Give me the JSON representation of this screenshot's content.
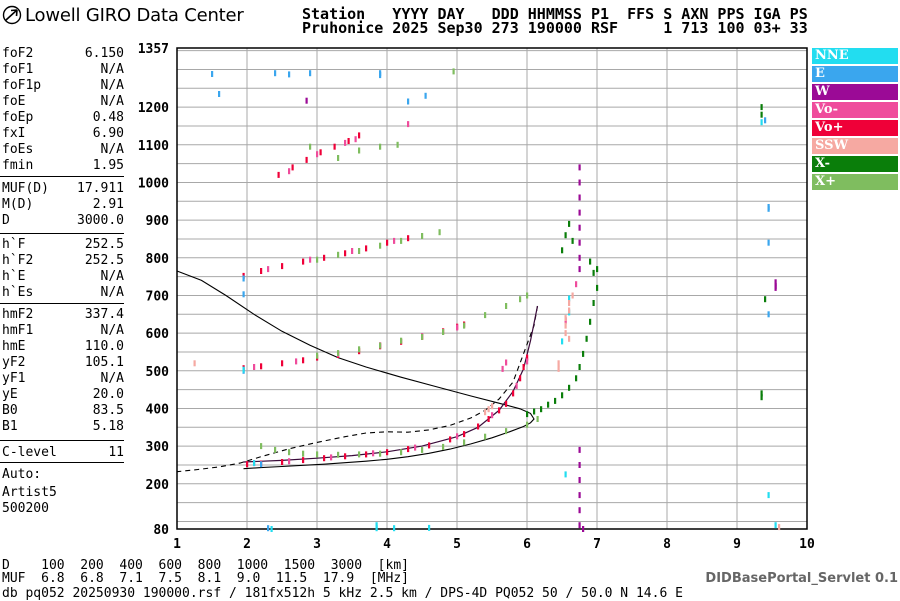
{
  "header": {
    "logo_text": "Lowell GIRO Data Center",
    "line1": "Station   YYYY DAY   DDD HHMMSS P1  FFS S AXN PPS IGA PS",
    "line2": "Pruhonice 2025 Sep30 273 190000 RSF     1 713 100 03+ 33"
  },
  "params": {
    "group1": [
      {
        "name": "foF2",
        "value": "6.150"
      },
      {
        "name": "foF1",
        "value": "N/A"
      },
      {
        "name": "foF1p",
        "value": "N/A"
      },
      {
        "name": "foE",
        "value": "N/A"
      },
      {
        "name": "foEp",
        "value": "0.48"
      },
      {
        "name": "fxI",
        "value": "6.90"
      },
      {
        "name": "foEs",
        "value": "N/A"
      },
      {
        "name": "fmin",
        "value": "1.95"
      }
    ],
    "group2": [
      {
        "name": "MUF(D)",
        "value": "17.911"
      },
      {
        "name": "M(D)",
        "value": "2.91"
      },
      {
        "name": "D",
        "value": "3000.0"
      }
    ],
    "group3": [
      {
        "name": "h`F",
        "value": "252.5"
      },
      {
        "name": "h`F2",
        "value": "252.5"
      },
      {
        "name": "h`E",
        "value": "N/A"
      },
      {
        "name": "h`Es",
        "value": "N/A"
      }
    ],
    "group4": [
      {
        "name": "hmF2",
        "value": "337.4"
      },
      {
        "name": "hmF1",
        "value": "N/A"
      },
      {
        "name": "hmE",
        "value": "110.0"
      },
      {
        "name": "yF2",
        "value": "105.1"
      },
      {
        "name": "yF1",
        "value": "N/A"
      },
      {
        "name": "yE",
        "value": "20.0"
      },
      {
        "name": "B0",
        "value": "83.5"
      },
      {
        "name": "B1",
        "value": "5.18"
      }
    ],
    "group5": [
      {
        "name": "C-level",
        "value": "11"
      }
    ]
  },
  "auto": {
    "line1": "Auto:",
    "line2": "Artist5",
    "line3": "500200"
  },
  "legend": [
    {
      "label": "NNE",
      "color": "#22ddf0"
    },
    {
      "label": "E",
      "color": "#3aa6ee"
    },
    {
      "label": "W",
      "color": "#9b0a96"
    },
    {
      "label": "Vo-",
      "color": "#ef4c9c"
    },
    {
      "label": "Vo+",
      "color": "#ef0038"
    },
    {
      "label": "SSW",
      "color": "#f6a9a2"
    },
    {
      "label": "X-",
      "color": "#0a7e0a"
    },
    {
      "label": "X+",
      "color": "#7fbd5f"
    }
  ],
  "bottom": {
    "d_row": "D    100  200  400  600  800  1000  1500  3000  [km]",
    "muf_row": "MUF  6.8  6.8  7.1  7.5  8.1  9.0  11.5  17.9  [MHz]",
    "file_row": "db pq052 20250930 190000.rsf / 181fx512h 5 kHz 2.5 km / DPS-4D PQ052 50 / 50.0 N 14.6 E",
    "portal": "DIDBasePortal_Servlet 0.1"
  },
  "chart_data": {
    "type": "scatter",
    "title": "",
    "xlabel": "",
    "ylabel": "",
    "xlim": [
      1,
      10
    ],
    "ylim": [
      80,
      1357
    ],
    "x_ticks": [
      1,
      2,
      3,
      4,
      5,
      6,
      7,
      8,
      9,
      10
    ],
    "y_ticks": [
      80,
      200,
      300,
      400,
      500,
      600,
      700,
      800,
      900,
      1000,
      1100,
      1200,
      1357
    ],
    "grid": true,
    "legend_position": "right",
    "series": [
      {
        "name": "Vo+",
        "color": "#ef0038",
        "points": [
          [
            2.0,
            252
          ],
          [
            2.2,
            254
          ],
          [
            2.5,
            258
          ],
          [
            2.8,
            263
          ],
          [
            3.1,
            268
          ],
          [
            3.4,
            273
          ],
          [
            3.7,
            278
          ],
          [
            4.0,
            284
          ],
          [
            4.3,
            292
          ],
          [
            4.6,
            302
          ],
          [
            4.9,
            318
          ],
          [
            5.1,
            332
          ],
          [
            5.3,
            352
          ],
          [
            5.45,
            372
          ],
          [
            5.6,
            395
          ],
          [
            5.7,
            412
          ],
          [
            5.8,
            440
          ],
          [
            5.9,
            480
          ],
          [
            5.95,
            510
          ],
          [
            6.0,
            535
          ],
          [
            1.95,
            507
          ],
          [
            2.2,
            512
          ],
          [
            2.5,
            520
          ],
          [
            2.8,
            528
          ],
          [
            3.0,
            535
          ],
          [
            3.3,
            542
          ],
          [
            3.6,
            552
          ],
          [
            3.9,
            565
          ],
          [
            4.2,
            577
          ],
          [
            4.5,
            590
          ],
          [
            4.8,
            605
          ],
          [
            5.0,
            617
          ],
          [
            5.1,
            623
          ],
          [
            1.95,
            752
          ],
          [
            2.2,
            765
          ],
          [
            2.5,
            778
          ],
          [
            2.8,
            790
          ],
          [
            3.1,
            800
          ],
          [
            3.4,
            812
          ],
          [
            3.7,
            825
          ],
          [
            4.0,
            840
          ],
          [
            4.3,
            852
          ],
          [
            2.45,
            1020
          ],
          [
            2.65,
            1040
          ],
          [
            2.85,
            1060
          ],
          [
            3.05,
            1080
          ],
          [
            3.25,
            1095
          ],
          [
            3.45,
            1110
          ],
          [
            3.6,
            1125
          ]
        ]
      },
      {
        "name": "Vo-",
        "color": "#ef4c9c",
        "points": [
          [
            2.1,
            255
          ],
          [
            2.6,
            260
          ],
          [
            3.2,
            270
          ],
          [
            3.8,
            281
          ],
          [
            4.4,
            296
          ],
          [
            5.0,
            326
          ],
          [
            5.5,
            382
          ],
          [
            5.85,
            460
          ],
          [
            6.0,
            525
          ],
          [
            2.1,
            510
          ],
          [
            2.7,
            525
          ],
          [
            3.3,
            545
          ],
          [
            3.9,
            568
          ],
          [
            4.5,
            592
          ],
          [
            5.0,
            615
          ],
          [
            2.3,
            770
          ],
          [
            2.9,
            795
          ],
          [
            3.5,
            818
          ],
          [
            4.1,
            845
          ],
          [
            2.6,
            1030
          ],
          [
            3.0,
            1075
          ],
          [
            3.4,
            1105
          ],
          [
            3.55,
            1115
          ],
          [
            5.65,
            505
          ],
          [
            5.7,
            522
          ],
          [
            6.55,
            632
          ],
          [
            6.55,
            635
          ],
          [
            4.3,
            1155
          ],
          [
            6.7,
            730
          ]
        ]
      },
      {
        "name": "X+",
        "color": "#7fbd5f",
        "points": [
          [
            2.2,
            300
          ],
          [
            2.4,
            290
          ],
          [
            2.6,
            284
          ],
          [
            2.8,
            280
          ],
          [
            3.0,
            278
          ],
          [
            3.3,
            277
          ],
          [
            3.6,
            278
          ],
          [
            3.9,
            280
          ],
          [
            4.2,
            284
          ],
          [
            4.5,
            290
          ],
          [
            4.8,
            298
          ],
          [
            5.1,
            310
          ],
          [
            5.4,
            325
          ],
          [
            5.7,
            340
          ],
          [
            6.0,
            357
          ],
          [
            6.15,
            372
          ],
          [
            3.0,
            540
          ],
          [
            3.3,
            547
          ],
          [
            3.6,
            557
          ],
          [
            3.9,
            567
          ],
          [
            4.2,
            580
          ],
          [
            4.5,
            590
          ],
          [
            4.8,
            603
          ],
          [
            5.1,
            620
          ],
          [
            5.4,
            648
          ],
          [
            5.7,
            672
          ],
          [
            5.9,
            690
          ],
          [
            6.0,
            700
          ],
          [
            3.0,
            795
          ],
          [
            3.3,
            808
          ],
          [
            3.6,
            818
          ],
          [
            3.9,
            832
          ],
          [
            4.2,
            845
          ],
          [
            4.5,
            858
          ],
          [
            4.75,
            868
          ],
          [
            3.3,
            1065
          ],
          [
            3.6,
            1085
          ],
          [
            3.9,
            1095
          ],
          [
            4.15,
            1100
          ],
          [
            2.9,
            1095
          ],
          [
            4.95,
            1295
          ]
        ]
      },
      {
        "name": "X-",
        "color": "#0a7e0a",
        "points": [
          [
            6.0,
            385
          ],
          [
            6.1,
            392
          ],
          [
            6.2,
            398
          ],
          [
            6.3,
            410
          ],
          [
            6.4,
            420
          ],
          [
            6.5,
            435
          ],
          [
            6.6,
            455
          ],
          [
            6.7,
            480
          ],
          [
            6.75,
            510
          ],
          [
            6.8,
            545
          ],
          [
            6.85,
            585
          ],
          [
            6.9,
            630
          ],
          [
            6.95,
            680
          ],
          [
            7.0,
            720
          ],
          [
            7.0,
            770
          ],
          [
            6.5,
            820
          ],
          [
            6.55,
            860
          ],
          [
            6.6,
            890
          ],
          [
            6.65,
            845
          ],
          [
            6.9,
            790
          ],
          [
            6.95,
            760
          ],
          [
            9.35,
            1200
          ],
          [
            9.35,
            1180
          ],
          [
            9.35,
            440
          ],
          [
            9.35,
            430
          ],
          [
            9.4,
            690
          ]
        ]
      },
      {
        "name": "W",
        "color": "#9b0a96",
        "points": [
          [
            6.75,
            1040
          ],
          [
            6.75,
            1000
          ],
          [
            6.75,
            960
          ],
          [
            6.75,
            920
          ],
          [
            6.75,
            880
          ],
          [
            6.75,
            840
          ],
          [
            6.75,
            800
          ],
          [
            6.75,
            770
          ],
          [
            6.75,
            290
          ],
          [
            6.75,
            250
          ],
          [
            6.75,
            210
          ],
          [
            6.75,
            170
          ],
          [
            6.75,
            130
          ],
          [
            6.75,
            90
          ],
          [
            6.8,
            80
          ],
          [
            2.85,
            1217
          ],
          [
            9.55,
            720
          ],
          [
            9.55,
            725
          ],
          [
            9.55,
            735
          ]
        ]
      },
      {
        "name": "E",
        "color": "#3aa6ee",
        "points": [
          [
            1.5,
            1288
          ],
          [
            2.4,
            1290
          ],
          [
            2.6,
            1287
          ],
          [
            2.9,
            1290
          ],
          [
            3.9,
            1290
          ],
          [
            3.9,
            1285
          ],
          [
            4.55,
            1230
          ],
          [
            1.6,
            1235
          ],
          [
            4.3,
            1215
          ],
          [
            9.4,
            1165
          ],
          [
            9.45,
            935
          ],
          [
            9.45,
            930
          ],
          [
            9.45,
            840
          ],
          [
            9.45,
            650
          ],
          [
            1.95,
            500
          ],
          [
            2.2,
            252
          ],
          [
            1.95,
            745
          ],
          [
            1.95,
            703
          ],
          [
            2.3,
            82
          ]
        ]
      },
      {
        "name": "NNE",
        "color": "#22ddf0",
        "points": [
          [
            1.95,
            503
          ],
          [
            2.1,
            255
          ],
          [
            9.35,
            1160
          ],
          [
            9.45,
            170
          ],
          [
            9.55,
            90
          ],
          [
            2.35,
            80
          ],
          [
            6.55,
            225
          ],
          [
            6.6,
            655
          ],
          [
            6.5,
            578
          ],
          [
            6.6,
            692
          ],
          [
            3.85,
            90
          ],
          [
            3.85,
            82
          ],
          [
            4.6,
            83
          ],
          [
            4.1,
            82
          ]
        ]
      },
      {
        "name": "SSW",
        "color": "#f6a9a2",
        "points": [
          [
            6.55,
            620
          ],
          [
            6.55,
            640
          ],
          [
            6.6,
            660
          ],
          [
            6.6,
            680
          ],
          [
            6.65,
            700
          ],
          [
            6.55,
            600
          ],
          [
            6.6,
            585
          ],
          [
            5.4,
            390
          ],
          [
            5.45,
            398
          ],
          [
            5.5,
            406
          ],
          [
            6.45,
            520
          ],
          [
            6.45,
            505
          ],
          [
            1.25,
            520
          ],
          [
            9.6,
            85
          ]
        ]
      }
    ],
    "profile_curves": {
      "true_height_profile": [
        [
          6.15,
          672
        ],
        [
          6.1,
          620
        ],
        [
          6.0,
          570
        ],
        [
          5.9,
          520
        ],
        [
          5.8,
          470
        ],
        [
          5.6,
          425
        ],
        [
          5.4,
          395
        ],
        [
          5.2,
          375
        ],
        [
          4.9,
          355
        ],
        [
          4.6,
          343
        ],
        [
          4.3,
          337
        ],
        [
          4.0,
          338
        ],
        [
          3.7,
          335
        ],
        [
          3.4,
          325
        ],
        [
          3.0,
          310
        ],
        [
          2.6,
          293
        ],
        [
          2.2,
          272
        ],
        [
          1.9,
          255
        ],
        [
          1.6,
          245
        ],
        [
          1.3,
          238
        ],
        [
          1.0,
          232
        ]
      ],
      "virtual_height_trace": [
        [
          1.95,
          240
        ],
        [
          2.2,
          243
        ],
        [
          2.5,
          246
        ],
        [
          2.8,
          249
        ],
        [
          3.1,
          252
        ],
        [
          3.4,
          256
        ],
        [
          3.7,
          260
        ],
        [
          4.0,
          265
        ],
        [
          4.3,
          272
        ],
        [
          4.6,
          281
        ],
        [
          4.9,
          292
        ],
        [
          5.2,
          306
        ],
        [
          5.5,
          322
        ],
        [
          5.75,
          338
        ],
        [
          5.95,
          352
        ],
        [
          6.05,
          362
        ],
        [
          6.1,
          372
        ],
        [
          6.05,
          387
        ],
        [
          5.9,
          399
        ],
        [
          5.6,
          414
        ],
        [
          5.2,
          433
        ],
        [
          4.7,
          458
        ],
        [
          4.2,
          483
        ],
        [
          3.7,
          510
        ],
        [
          3.3,
          535
        ],
        [
          2.9,
          568
        ],
        [
          2.5,
          605
        ],
        [
          2.1,
          650
        ],
        [
          1.7,
          700
        ],
        [
          1.35,
          740
        ],
        [
          1.0,
          765
        ]
      ],
      "o_trace_fit": [
        [
          1.95,
          258
        ],
        [
          2.5,
          262
        ],
        [
          3.0,
          268
        ],
        [
          3.5,
          275
        ],
        [
          4.0,
          285
        ],
        [
          4.5,
          300
        ],
        [
          5.0,
          325
        ],
        [
          5.3,
          350
        ],
        [
          5.6,
          395
        ],
        [
          5.8,
          445
        ],
        [
          5.95,
          505
        ],
        [
          6.05,
          580
        ],
        [
          6.15,
          672
        ]
      ]
    }
  }
}
